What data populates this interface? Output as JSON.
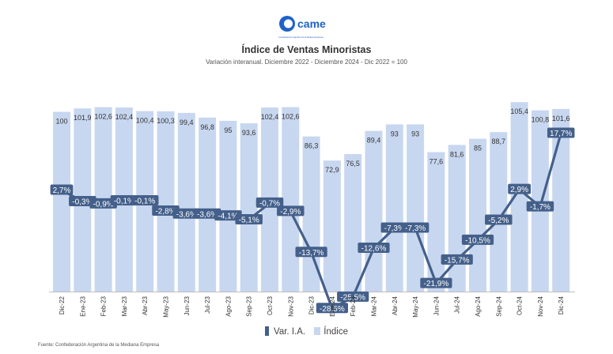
{
  "logo": {
    "brand": "came",
    "tagline": "Confederación Argentina de la Mediana Empresa"
  },
  "legend": {
    "line_label": "Var. I.A.",
    "bar_label": "Índice"
  },
  "source": "Fuente: Confederación Argentina de la Mediana Empresa",
  "chart_data": {
    "type": "bar",
    "title": "Índice de Ventas Minoristas",
    "subtitle": "Variación interanual. Diciembre 2022 - Diciembre 2024 - Dic 2022 = 100",
    "categories": [
      "Dic-22",
      "Ene-23",
      "Feb-23",
      "Mar-23",
      "Abr-23",
      "May-23",
      "Jun-23",
      "Jul-23",
      "Ago-23",
      "Sep-23",
      "Oct-23",
      "Nov-23",
      "Dic-23",
      "Ene-24",
      "Feb-24",
      "Mar-24",
      "Abr-24",
      "May-24",
      "Jun-24",
      "Jul-24",
      "Ago-24",
      "Sep-24",
      "Oct-24",
      "Nov-24",
      "Dic-24"
    ],
    "series": [
      {
        "name": "Índice",
        "type": "bar",
        "values": [
          100,
          101.9,
          102.6,
          102.4,
          100.4,
          100.3,
          99.4,
          96.8,
          95,
          93.6,
          102.4,
          102.6,
          86.3,
          72.9,
          76.5,
          89.4,
          93,
          93,
          77.6,
          81.6,
          85,
          88.7,
          105.4,
          100.8,
          101.6
        ],
        "labels": [
          "100",
          "101,9",
          "102,6",
          "102,4",
          "100,4",
          "100,3",
          "99,4",
          "96,8",
          "95",
          "93,6",
          "102,4",
          "102,6",
          "86,3",
          "72,9",
          "76,5",
          "89,4",
          "93",
          "93",
          "77,6",
          "81,6",
          "85",
          "88,7",
          "105,4",
          "100,8",
          "101,6"
        ],
        "color": "#c8d7f0"
      },
      {
        "name": "Var. I.A.",
        "type": "line",
        "values": [
          2.7,
          -0.3,
          -0.9,
          -0.1,
          -0.1,
          -2.8,
          -3.6,
          -3.6,
          -4.1,
          -5.1,
          -0.7,
          -2.9,
          -13.7,
          -28.5,
          -25.5,
          -12.6,
          -7.3,
          -7.3,
          -21.9,
          -15.7,
          -10.5,
          -5.2,
          2.9,
          -1.7,
          17.7
        ],
        "labels": [
          "2,7%",
          "-0,3%",
          "-0,9%",
          "-0,1%",
          "-0,1%",
          "-2,8%",
          "-3,6%",
          "-3,6%",
          "-4,1%",
          "-5,1%",
          "-0,7%",
          "-2,9%",
          "-13,7%",
          "-28,5%",
          "-25,5%",
          "-12,6%",
          "-7,3%",
          "-7,3%",
          "-21,9%",
          "-15,7%",
          "-10,5%",
          "-5,2%",
          "2,9%",
          "-1,7%",
          "17,7%"
        ],
        "color": "#44608a"
      }
    ],
    "legend_position": "bottom",
    "grid": false
  }
}
